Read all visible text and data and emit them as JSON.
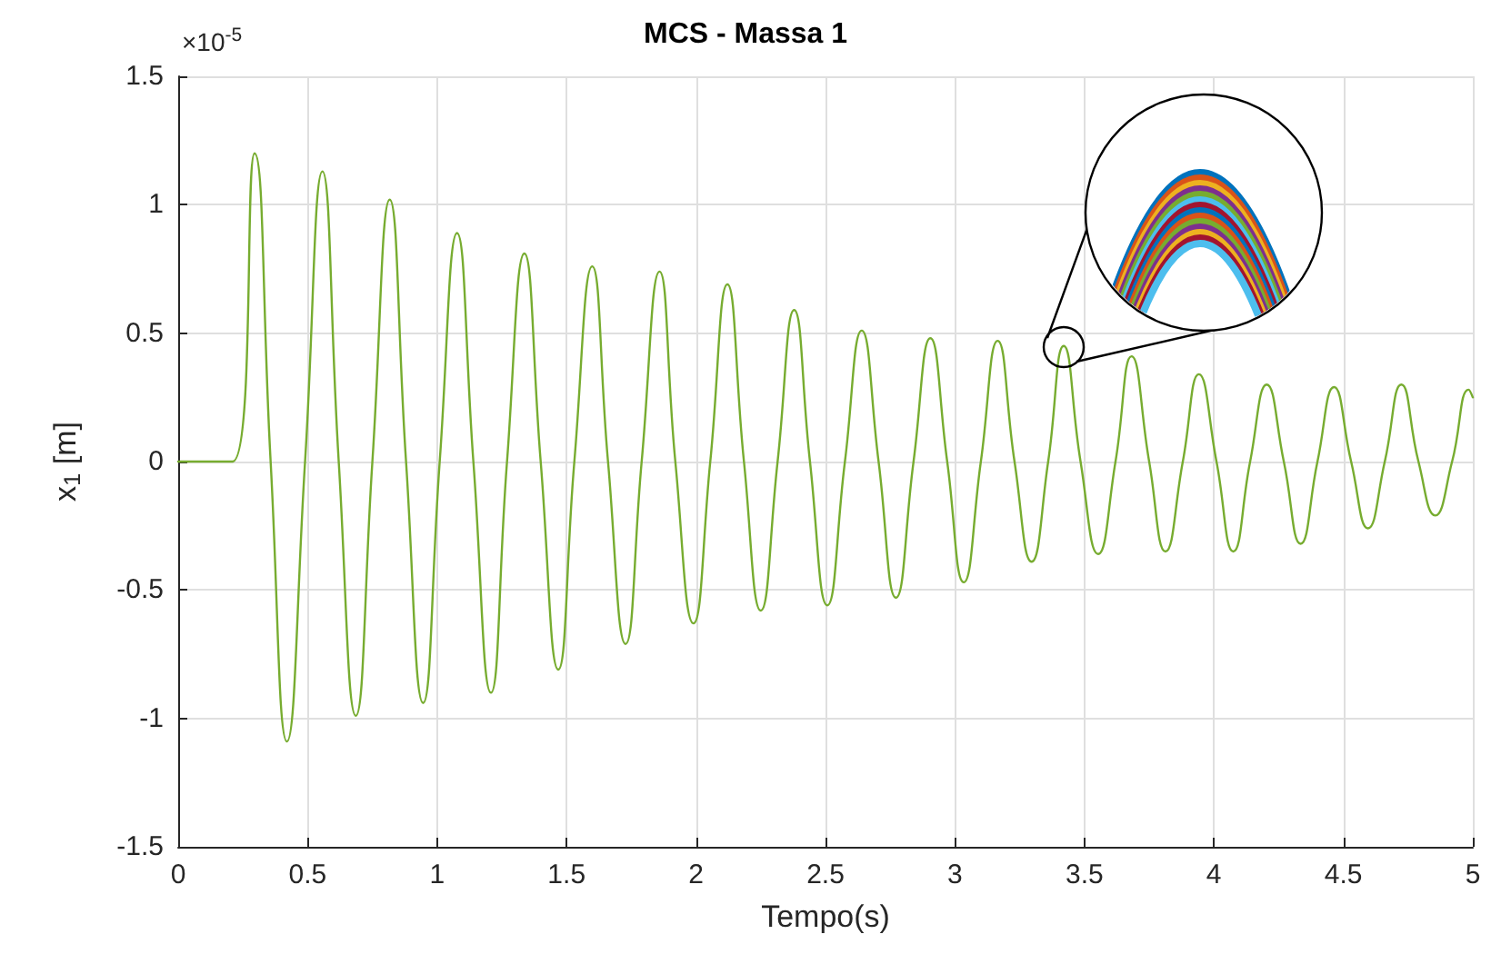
{
  "chart_data": {
    "type": "line",
    "title": "MCS - Massa 1",
    "xlabel": "Tempo(s)",
    "ylabel": "x$_{1}$ [m]",
    "annotations": [
      "×10$^{-5}$"
    ],
    "xlim": [
      0,
      5
    ],
    "xticks": [
      0,
      0.5,
      1,
      1.5,
      2,
      2.5,
      3,
      3.5,
      4,
      4.5,
      5
    ],
    "ylim": [
      -1.5,
      1.5
    ],
    "yticks": [
      -1.5,
      -1,
      -0.5,
      0,
      0.5,
      1,
      1.5
    ],
    "grid": true,
    "marker": "none",
    "line_style": "solid",
    "series": [
      {
        "color": "#77ac30",
        "x": [
          0,
          0.21,
          0.295,
          0.357,
          0.42,
          0.49,
          0.557,
          0.62,
          0.686,
          0.75,
          0.817,
          0.88,
          0.946,
          1.01,
          1.077,
          1.14,
          1.208,
          1.27,
          1.337,
          1.4,
          1.468,
          1.53,
          1.599,
          1.66,
          1.728,
          1.79,
          1.859,
          1.92,
          1.99,
          2.055,
          2.121,
          2.185,
          2.25,
          2.315,
          2.379,
          2.44,
          2.507,
          2.575,
          2.64,
          2.705,
          2.772,
          2.84,
          2.905,
          2.97,
          3.034,
          3.1,
          3.165,
          3.23,
          3.296,
          3.36,
          3.42,
          3.485,
          3.553,
          3.62,
          3.682,
          3.75,
          3.813,
          3.88,
          3.942,
          4.01,
          4.075,
          4.14,
          4.204,
          4.27,
          4.335,
          4.4,
          4.464,
          4.53,
          4.595,
          4.66,
          4.724,
          4.79,
          4.855,
          4.92,
          4.984,
          5
        ],
        "values": [
          0,
          0,
          1.2,
          0,
          -1.09,
          0,
          1.13,
          0,
          -0.99,
          0,
          1.02,
          0,
          -0.94,
          0,
          0.89,
          0,
          -0.9,
          0,
          0.81,
          0,
          -0.81,
          0,
          0.76,
          0,
          -0.71,
          0,
          0.74,
          0,
          -0.63,
          0,
          0.69,
          0,
          -0.58,
          0,
          0.59,
          0,
          -0.56,
          0,
          0.51,
          0,
          -0.53,
          0,
          0.48,
          0,
          -0.47,
          0,
          0.47,
          0,
          -0.39,
          0,
          0.45,
          0,
          -0.36,
          0,
          0.41,
          0,
          -0.35,
          0,
          0.34,
          0,
          -0.35,
          0,
          0.3,
          0,
          -0.32,
          0,
          0.29,
          0,
          -0.26,
          0,
          0.3,
          0,
          -0.21,
          0,
          0.28,
          0.25
        ]
      }
    ]
  }
}
